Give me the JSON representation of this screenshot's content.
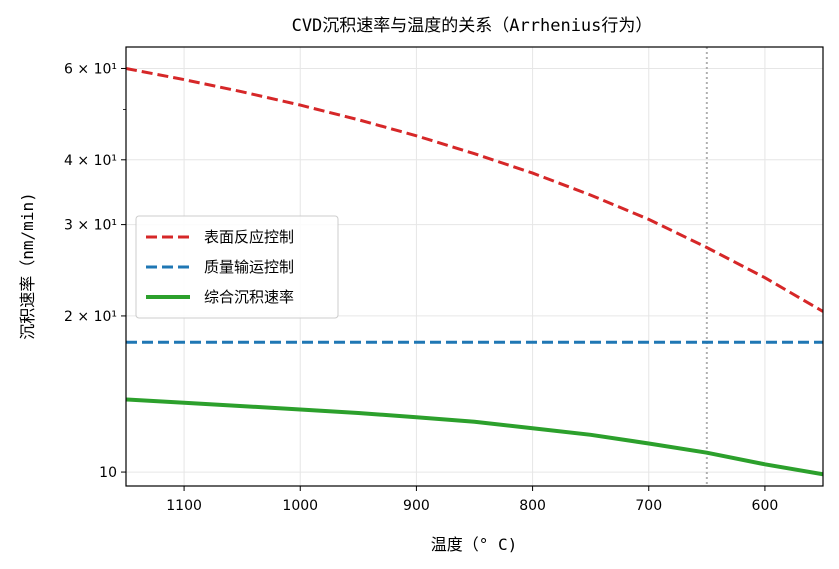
{
  "chart_data": {
    "type": "line",
    "title": "CVD沉积速率与温度的关系（Arrhenius行为）",
    "xlabel": "温度（° C)",
    "ylabel": "沉积速率（nm/min)",
    "xlim": [
      1150,
      550
    ],
    "x_reversed": true,
    "ylim": [
      9.4,
      66
    ],
    "yscale": "log",
    "grid": true,
    "legend_position": "center-left",
    "x_ticks": [
      {
        "value": 1100,
        "label": "1100"
      },
      {
        "value": 1000,
        "label": "1000"
      },
      {
        "value": 900,
        "label": "900"
      },
      {
        "value": 800,
        "label": "800"
      },
      {
        "value": 700,
        "label": "700"
      },
      {
        "value": 600,
        "label": "600"
      }
    ],
    "y_ticks": [
      {
        "value": 10,
        "label": "10"
      },
      {
        "value": 20,
        "label": "2 × 10¹"
      },
      {
        "value": 30,
        "label": "3 × 10¹"
      },
      {
        "value": 40,
        "label": "4 × 10¹"
      },
      {
        "value": 60,
        "label": "6 × 10¹"
      }
    ],
    "y_minor_ticks": [
      50
    ],
    "reference_line": {
      "x": 650,
      "color": "#b0b0b0",
      "style": "dotted"
    },
    "series": [
      {
        "name": "表面反应控制",
        "color": "#d62728",
        "style": "dashed",
        "x": [
          1150,
          1100,
          1050,
          1000,
          950,
          900,
          850,
          800,
          750,
          700,
          650,
          600,
          550
        ],
        "y": [
          60,
          57.1,
          54.1,
          51.0,
          47.8,
          44.5,
          41.1,
          37.7,
          34.2,
          30.7,
          27.1,
          23.7,
          20.4
        ]
      },
      {
        "name": "质量输运控制",
        "color": "#1f77b4",
        "style": "dashed",
        "x": [
          1150,
          550
        ],
        "y": [
          17.8,
          17.8
        ]
      },
      {
        "name": "综合沉积速率",
        "color": "#2ca02c",
        "style": "solid",
        "x": [
          1150,
          1100,
          1050,
          1000,
          950,
          900,
          850,
          800,
          750,
          700,
          650,
          600,
          550
        ],
        "y": [
          13.8,
          13.6,
          13.4,
          13.2,
          13.0,
          12.75,
          12.5,
          12.15,
          11.8,
          11.35,
          10.9,
          10.35,
          9.9
        ]
      }
    ]
  }
}
